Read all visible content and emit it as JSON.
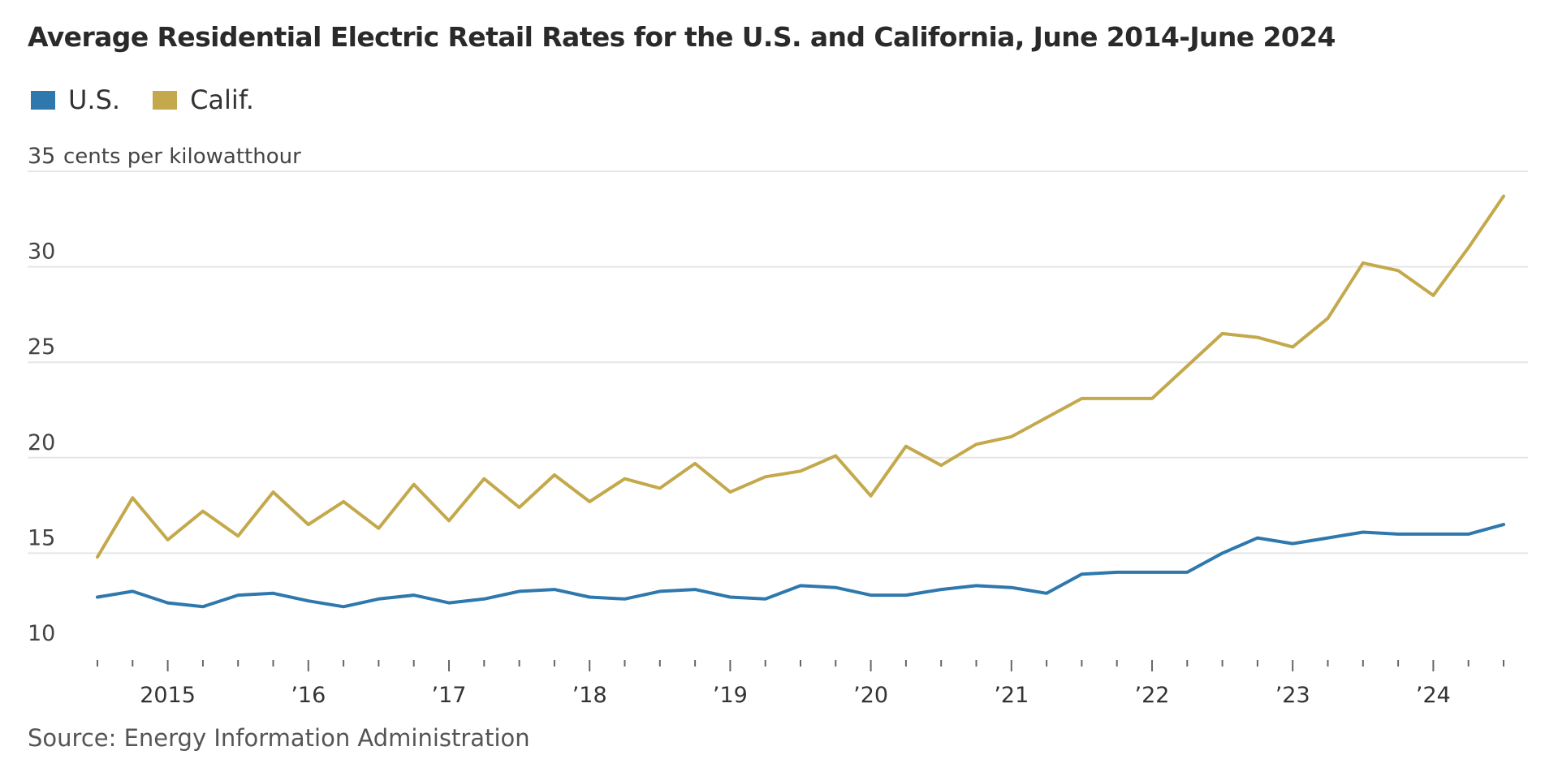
{
  "title": "Average Residential Electric Retail Rates for the U.S. and California, June 2014-June 2024",
  "source": "Source: Energy Information Administration",
  "legend": [
    {
      "name": "U.S.",
      "color": "#2e78ad"
    },
    {
      "name": "Calif.",
      "color": "#c3a94b"
    }
  ],
  "chart_data": {
    "type": "line",
    "ylabel": "cents per kilowatthour",
    "ylim": [
      10,
      35
    ],
    "yticks": [
      35,
      30,
      25,
      20,
      15,
      10
    ],
    "grid": true,
    "legend_position": "top-left",
    "xlim": [
      2014.35,
      2024.55
    ],
    "xtick_labels": [
      {
        "x": 2015,
        "label": "2015"
      },
      {
        "x": 2016,
        "label": "’16"
      },
      {
        "x": 2017,
        "label": "’17"
      },
      {
        "x": 2018,
        "label": "’18"
      },
      {
        "x": 2019,
        "label": "’19"
      },
      {
        "x": 2020,
        "label": "’20"
      },
      {
        "x": 2021,
        "label": "’21"
      },
      {
        "x": 2022,
        "label": "’22"
      },
      {
        "x": 2023,
        "label": "’23"
      },
      {
        "x": 2024,
        "label": "’24"
      }
    ],
    "x": [
      2014.5,
      2014.75,
      2015,
      2015.25,
      2015.5,
      2015.75,
      2016,
      2016.25,
      2016.5,
      2016.75,
      2017,
      2017.25,
      2017.5,
      2017.75,
      2018,
      2018.25,
      2018.5,
      2018.75,
      2019,
      2019.25,
      2019.5,
      2019.75,
      2020,
      2020.25,
      2020.5,
      2020.75,
      2021,
      2021.25,
      2021.5,
      2021.75,
      2022,
      2022.25,
      2022.5,
      2022.75,
      2023,
      2023.25,
      2023.5,
      2023.75,
      2024,
      2024.25,
      2024.5
    ],
    "series": [
      {
        "name": "U.S.",
        "color": "#2e78ad",
        "values": [
          12.7,
          13.0,
          12.4,
          12.2,
          12.8,
          12.9,
          12.5,
          12.2,
          12.6,
          12.8,
          12.4,
          12.6,
          13.0,
          13.1,
          12.7,
          12.6,
          13.0,
          13.1,
          12.7,
          12.6,
          13.3,
          13.2,
          12.8,
          12.8,
          13.1,
          13.3,
          13.2,
          12.9,
          13.9,
          14.0,
          14.0,
          14.0,
          15.0,
          15.8,
          15.5,
          15.8,
          16.1,
          16.0,
          16.0,
          16.0,
          16.5
        ]
      },
      {
        "name": "Calif.",
        "color": "#c3a94b",
        "values": [
          14.8,
          17.9,
          15.7,
          17.2,
          15.9,
          18.2,
          16.5,
          17.7,
          16.3,
          18.6,
          16.7,
          18.9,
          17.4,
          19.1,
          17.7,
          18.9,
          18.4,
          19.7,
          18.2,
          19.0,
          19.3,
          20.1,
          18.0,
          20.6,
          19.6,
          20.7,
          21.1,
          22.1,
          23.1,
          23.1,
          23.1,
          24.8,
          26.5,
          26.3,
          25.8,
          27.3,
          30.2,
          29.8,
          28.5,
          31.0,
          33.7
        ]
      }
    ]
  }
}
